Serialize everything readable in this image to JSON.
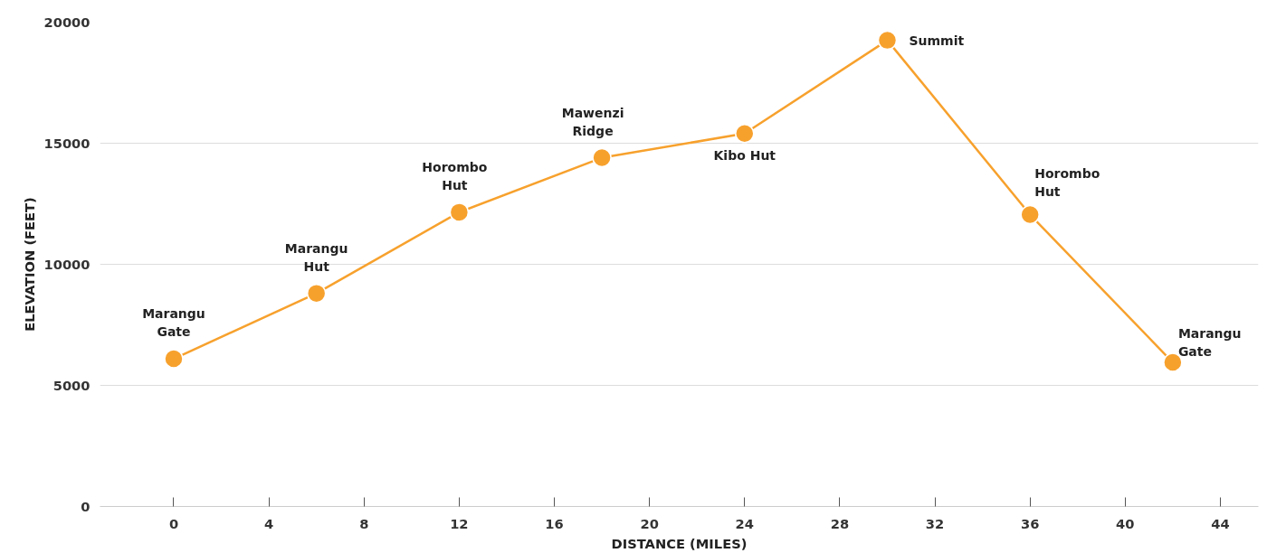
{
  "chart_data": {
    "type": "line",
    "xlabel": "DISTANCE (MILES)",
    "ylabel": "ELEVATION (FEET)",
    "x": [
      0,
      6,
      12,
      18,
      24,
      30,
      36,
      42
    ],
    "series": [
      {
        "color": "#f7a12d",
        "values": [
          6100,
          8800,
          12150,
          14400,
          15400,
          19250,
          12050,
          5950
        ]
      }
    ],
    "xlim": [
      -3.1,
      45.6
    ],
    "ylim": [
      0,
      20000
    ],
    "xticks": [
      0,
      4,
      8,
      12,
      16,
      20,
      24,
      28,
      32,
      36,
      40,
      44
    ],
    "yticks": [
      0,
      5000,
      10000,
      15000,
      20000
    ],
    "grid": "y",
    "marker": "circle",
    "line_style": "solid",
    "annotations": [
      {
        "text": "Marangu\nGate",
        "x": 0,
        "y": 6100
      },
      {
        "text": "Marangu\nHut",
        "x": 6,
        "y": 8800
      },
      {
        "text": "Horombo\nHut",
        "x": 12,
        "y": 12150
      },
      {
        "text": "Mawenzi\nRidge",
        "x": 18,
        "y": 14400
      },
      {
        "text": "Kibo Hut",
        "x": 24,
        "y": 15400
      },
      {
        "text": "Summit",
        "x": 30,
        "y": 19250
      },
      {
        "text": "Horombo\nHut",
        "x": 36,
        "y": 12050
      },
      {
        "text": "Marangu\nGate",
        "x": 42,
        "y": 5950
      }
    ]
  }
}
